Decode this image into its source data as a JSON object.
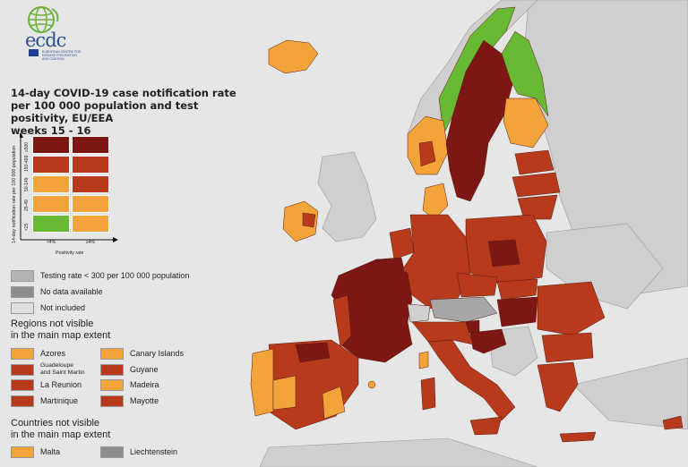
{
  "logo": {
    "text": "ecdc",
    "subtitle": "EUROPEAN CENTRE FOR\nDISEASE PREVENTION\nAND CONTROL"
  },
  "title": "14-day COVID-19 case notification rate\nper 100 000 population and test positivity, EU/EEA\nweeks 15 - 16",
  "matrix": {
    "y_axis_title": "14-day notification rate per 100 000 population",
    "x_axis_title": "Positivity rate",
    "rate_bands": [
      "≥500",
      "150-499",
      "50-149",
      "25-49",
      "<25"
    ],
    "positivity_bands": [
      "<4%",
      "≥4%"
    ],
    "cell_colors": [
      [
        "#7d1714",
        "#7d1714"
      ],
      [
        "#b73a1d",
        "#b73a1d"
      ],
      [
        "#f2a43a",
        "#b73a1d"
      ],
      [
        "#f2a43a",
        "#f2a43a"
      ],
      [
        "#67b832",
        "#f2a43a"
      ]
    ]
  },
  "legend": {
    "grey_items": [
      {
        "label": "Testing rate < 300 per 100 000 population",
        "color": "#b3b3b3"
      },
      {
        "label": "No data available",
        "color": "#8c8c8c"
      },
      {
        "label": "Not included",
        "color": "#e0e0e0"
      }
    ],
    "regions_heading": "Regions not visible\nin the main map extent",
    "regions_left": [
      {
        "label": "Azores",
        "color": "#f2a43a"
      },
      {
        "label": "Guadeloupe\nand Saint Martin",
        "color": "#b73a1d"
      },
      {
        "label": "La Reunion",
        "color": "#b73a1d"
      },
      {
        "label": "Martinique",
        "color": "#b73a1d"
      }
    ],
    "regions_right": [
      {
        "label": "Canary Islands",
        "color": "#f2a43a"
      },
      {
        "label": "Guyane",
        "color": "#b73a1d"
      },
      {
        "label": "Madeira",
        "color": "#f2a43a"
      },
      {
        "label": "Mayotte",
        "color": "#b73a1d"
      }
    ],
    "countries_heading": "Countries not visible\nin the main map extent",
    "countries": [
      {
        "label": "Malta",
        "color": "#f2a43a"
      },
      {
        "label": "Liechtenstein",
        "color": "#8c8c8c"
      }
    ]
  },
  "colors": {
    "sea": "#e6e6e6",
    "non_eu_land": "#cfcfcf",
    "dark_red": "#7d1714",
    "red": "#b73a1d",
    "orange": "#f2a43a",
    "green": "#67b832",
    "grey": "#a6a6a6",
    "border": "#5a1a10"
  }
}
